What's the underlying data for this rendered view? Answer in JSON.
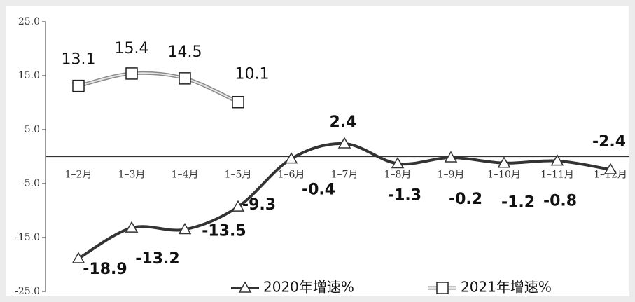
{
  "chart_data": {
    "type": "line",
    "categories": [
      "1–2月",
      "1–3月",
      "1–4月",
      "1–5月",
      "1–6月",
      "1–7月",
      "1–8月",
      "1–9月",
      "1–10月",
      "1–11月",
      "1–12月"
    ],
    "series": [
      {
        "name": "2020年增速%",
        "color": "#333333",
        "marker": "triangle",
        "values": [
          -18.9,
          -13.2,
          -13.5,
          -9.3,
          -0.4,
          2.4,
          -1.3,
          -0.2,
          -1.2,
          -0.8,
          -2.4
        ]
      },
      {
        "name": "2021年增速%",
        "color": "#8a8a8a",
        "marker": "square",
        "values": [
          13.1,
          15.4,
          14.5,
          10.1,
          null,
          null,
          null,
          null,
          null,
          null,
          null
        ]
      }
    ],
    "ylim": [
      -25,
      25
    ],
    "yticks": [
      {
        "value": -25,
        "label": "-25.0"
      },
      {
        "value": -15,
        "label": "-15.0"
      },
      {
        "value": -5,
        "label": "-5.0"
      },
      {
        "value": 5,
        "label": "5.0"
      },
      {
        "value": 15,
        "label": "15.0"
      },
      {
        "value": 25,
        "label": "25.0"
      }
    ]
  }
}
